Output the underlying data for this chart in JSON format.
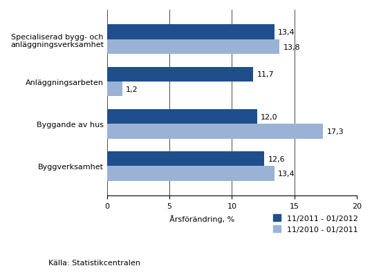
{
  "categories": [
    "Byggverksamhet",
    "Byggande av hus",
    "Anläggningsarbeten",
    "Specialiserad bygg- och\nanläggningsverksamhet"
  ],
  "series1_label": "11/2011 - 01/2012",
  "series2_label": "11/2010 - 01/2011",
  "series1_values": [
    12.6,
    12.0,
    11.7,
    13.4
  ],
  "series2_values": [
    13.4,
    17.3,
    1.2,
    13.8
  ],
  "series1_color": "#1f4e8c",
  "series2_color": "#9ab3d5",
  "xlabel": "Årsförändring, %",
  "source": "Källa: Statistikcentralen",
  "xlim": [
    0,
    20
  ],
  "xticks": [
    0,
    5,
    10,
    15,
    20
  ],
  "bar_height": 0.35,
  "label_fontsize": 8,
  "tick_fontsize": 8,
  "value_fontsize": 8
}
